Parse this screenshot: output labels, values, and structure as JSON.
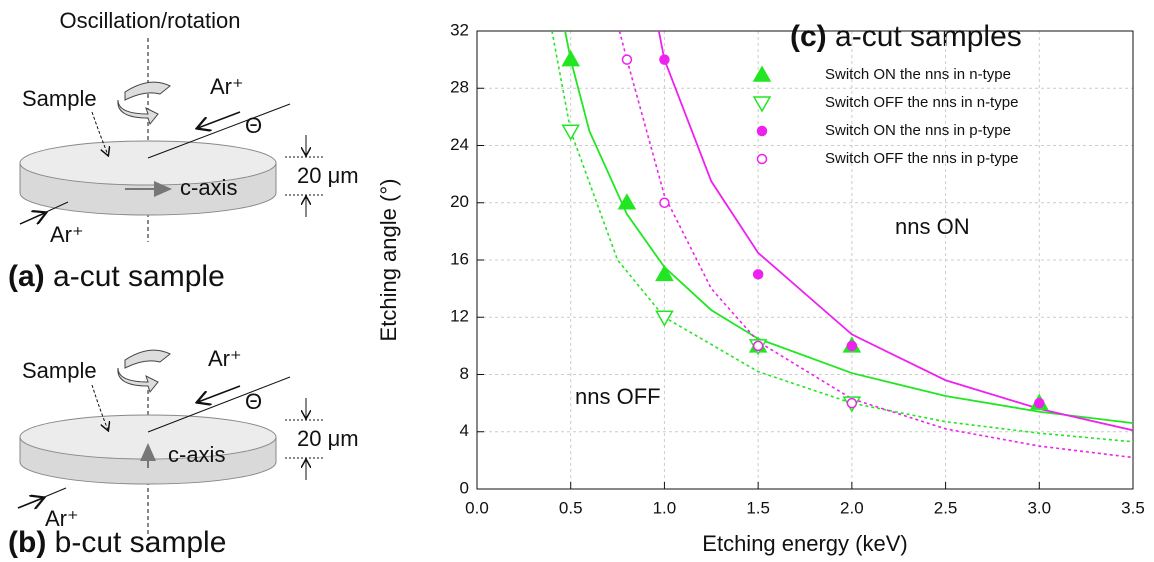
{
  "diagram": {
    "a": {
      "top_label": "Oscillation/rotation",
      "sample": "Sample",
      "beam_in": "Ar⁺",
      "angle": "Θ",
      "thickness": "20 μm",
      "axis": "c-axis",
      "beam_out": "Ar⁺",
      "panel": "(a)",
      "caption": "a-cut sample"
    },
    "b": {
      "sample": "Sample",
      "beam_in": "Ar⁺",
      "angle": "Θ",
      "thickness": "20 μm",
      "axis": "c-axis",
      "beam_out": "Ar⁺",
      "panel": "(b)",
      "caption": "b-cut sample"
    }
  },
  "chart_data": {
    "type": "scatter",
    "panel_label": "(c)",
    "title": "a-cut samples",
    "x_label": "Etching energy (keV)",
    "y_label": "Etching angle (°)",
    "xlim": [
      0,
      3.5
    ],
    "ylim": [
      0,
      32
    ],
    "xticks": [
      {
        "value": 0,
        "label": "0.0"
      },
      0.5,
      {
        "value": 1,
        "label": "1.0"
      },
      1.5,
      {
        "value": 2,
        "label": "2.0"
      },
      2.5,
      {
        "value": 3,
        "label": "3.0"
      },
      3.5
    ],
    "yticks": [
      0,
      4,
      8,
      12,
      16,
      20,
      24,
      28,
      32
    ],
    "grid": true,
    "legend": "upper right",
    "series": [
      {
        "name": "Switch ON the nns in n-type",
        "color": "#22e622",
        "marker": "triangle",
        "filled": true,
        "x": [
          0.5,
          0.8,
          1,
          1.5,
          2,
          3
        ],
        "values": [
          30,
          20,
          15,
          10,
          10,
          6
        ]
      },
      {
        "name": "Switch OFF the nns in n-type",
        "color": "#22e622",
        "marker": "triangle-down",
        "filled": false,
        "x": [
          0.5,
          1,
          1.5,
          2
        ],
        "values": [
          25,
          12,
          10,
          6
        ]
      },
      {
        "name": "Switch ON the nns in p-type",
        "color": "#ee22ee",
        "marker": "circle",
        "filled": true,
        "x": [
          1,
          1.5,
          2,
          3
        ],
        "values": [
          30,
          15,
          10,
          6
        ]
      },
      {
        "name": "Switch OFF the nns in p-type",
        "color": "#ee22ee",
        "marker": "circle",
        "filled": false,
        "x": [
          0.8,
          1,
          1.5,
          2
        ],
        "values": [
          30,
          20,
          10,
          6
        ]
      }
    ],
    "fits": [
      {
        "color": "#22e622",
        "dashed": false,
        "x": [
          0.47,
          0.5,
          0.6,
          0.8,
          1.0,
          1.25,
          1.5,
          2.0,
          2.5,
          3.0,
          3.5
        ],
        "values": [
          32,
          30,
          25,
          19.2,
          15.5,
          12.5,
          10.5,
          8.1,
          6.5,
          5.4,
          4.6
        ]
      },
      {
        "color": "#22e622",
        "dashed": true,
        "x": [
          0.4,
          0.5,
          0.75,
          1.0,
          1.5,
          2.0,
          2.5,
          3.0,
          3.5
        ],
        "values": [
          32,
          25,
          16,
          12,
          8.2,
          6.0,
          4.7,
          3.9,
          3.3
        ]
      },
      {
        "color": "#ee22ee",
        "dashed": false,
        "x": [
          0.97,
          1.0,
          1.25,
          1.5,
          2.0,
          2.5,
          3.0,
          3.5
        ],
        "values": [
          32,
          30,
          21.5,
          16.5,
          10.8,
          7.6,
          5.6,
          4.1
        ]
      },
      {
        "color": "#ee22ee",
        "dashed": true,
        "x": [
          0.76,
          0.8,
          1.0,
          1.25,
          1.5,
          2.0,
          2.5,
          3.0,
          3.5
        ],
        "values": [
          32,
          30,
          20.5,
          14,
          10.3,
          6.3,
          4.2,
          3.0,
          2.2
        ]
      }
    ],
    "annotations": [
      "nns ON",
      "nns OFF"
    ]
  }
}
